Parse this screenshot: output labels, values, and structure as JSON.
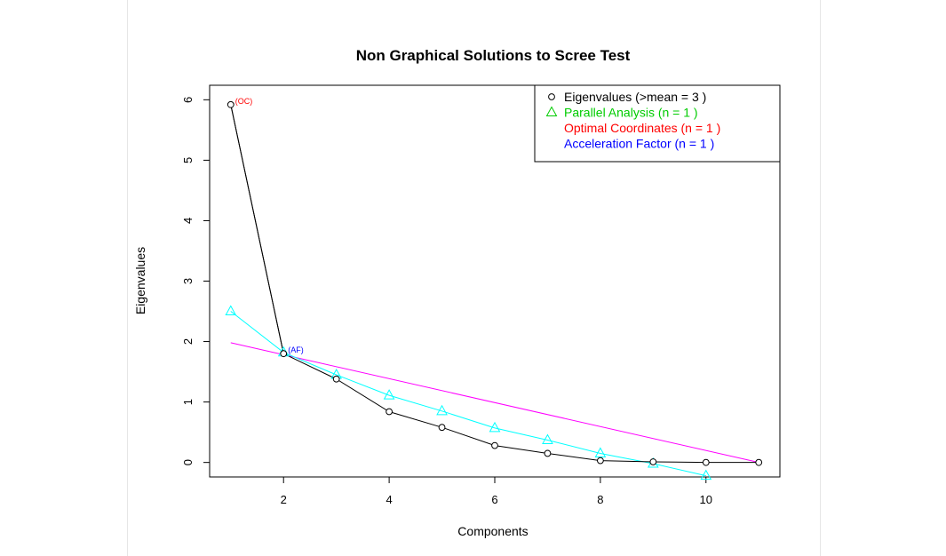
{
  "chart_data": {
    "type": "line",
    "title": "Non Graphical Solutions to Scree Test",
    "xlabel": "Components",
    "ylabel": "Eigenvalues",
    "xlim": [
      0.6,
      11.4
    ],
    "ylim": [
      -0.24,
      6.24
    ],
    "x_ticks": [
      2,
      4,
      6,
      8,
      10
    ],
    "y_ticks": [
      0,
      1,
      2,
      3,
      4,
      5,
      6
    ],
    "grid": false,
    "legend_position": "top-right",
    "series": [
      {
        "name": "Eigenvalues (>mean  =  3 )",
        "color": "#000000",
        "marker": "circle",
        "x": [
          1,
          2,
          3,
          4,
          5,
          6,
          7,
          8,
          9,
          10,
          11
        ],
        "values": [
          5.92,
          1.8,
          1.38,
          0.84,
          0.58,
          0.28,
          0.15,
          0.03,
          0.01,
          0.0,
          0.0
        ]
      },
      {
        "name": "Parallel Analysis (n =  1 )",
        "color": "#00ffff",
        "marker": "triangle",
        "x": [
          1,
          2,
          3,
          4,
          5,
          6,
          7,
          8,
          9,
          10
        ],
        "values": [
          2.5,
          1.82,
          1.45,
          1.11,
          0.85,
          0.57,
          0.37,
          0.15,
          -0.02,
          -0.22
        ]
      },
      {
        "name": "Optimal Coordinates (n =  1 )",
        "color": "#ff0000",
        "marker": "none"
      },
      {
        "name": "Acceleration Factor (n =  1 )",
        "color": "#0000ff",
        "marker": "none"
      }
    ],
    "optimal_coordinates_line": {
      "color": "#ff00ff",
      "x": [
        1,
        11
      ],
      "values": [
        1.98,
        0.0
      ]
    },
    "acceleration_factor_line": {
      "color": "#000000",
      "x": [
        1,
        2
      ],
      "values": [
        5.92,
        1.8
      ]
    },
    "annotations": [
      {
        "text": "(OC)",
        "x": 1,
        "y": 5.92,
        "color": "#ff0000"
      },
      {
        "text": "(AF)",
        "x": 2,
        "y": 1.8,
        "color": "#0000ff"
      }
    ]
  }
}
